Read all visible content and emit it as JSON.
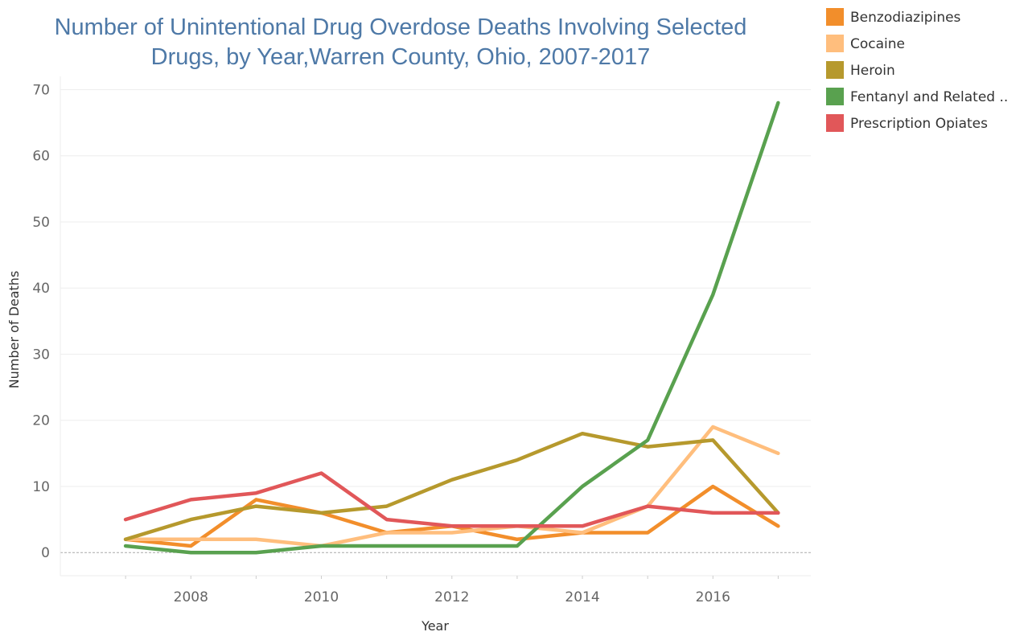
{
  "chart_data": {
    "type": "line",
    "title_lines": [
      "Number of Unintentional Drug Overdose Deaths Involving Selected",
      "Drugs, by Year,Warren County, Ohio, 2007-2017"
    ],
    "xlabel": "Year",
    "ylabel": "Number of Deaths",
    "x": [
      2007,
      2008,
      2009,
      2010,
      2011,
      2012,
      2013,
      2014,
      2015,
      2016,
      2017
    ],
    "xticks": [
      2008,
      2010,
      2012,
      2014,
      2016
    ],
    "xlim": [
      2006.0,
      2017.5
    ],
    "ylim": [
      -3.5,
      72
    ],
    "yticks": [
      0,
      10,
      20,
      30,
      40,
      50,
      60,
      70
    ],
    "grid": true,
    "legend_position": "top-right",
    "series": [
      {
        "name": "Benzodiazipines",
        "color": "#f28e2b",
        "values": [
          2,
          1,
          8,
          6,
          3,
          4,
          2,
          3,
          3,
          10,
          4
        ]
      },
      {
        "name": "Cocaine",
        "color": "#ffbe7d",
        "values": [
          2,
          2,
          2,
          1,
          3,
          3,
          4,
          3,
          7,
          19,
          15
        ]
      },
      {
        "name": "Heroin",
        "color": "#b6992d",
        "values": [
          2,
          5,
          7,
          6,
          7,
          11,
          14,
          18,
          16,
          17,
          6
        ]
      },
      {
        "name": "Fentanyl and Related ..",
        "color": "#59a14f",
        "values": [
          1,
          0,
          0,
          1,
          1,
          1,
          1,
          10,
          17,
          39,
          68
        ]
      },
      {
        "name": "Prescription Opiates",
        "color": "#e15759",
        "values": [
          5,
          8,
          9,
          12,
          5,
          4,
          4,
          4,
          7,
          6,
          6
        ]
      }
    ]
  }
}
